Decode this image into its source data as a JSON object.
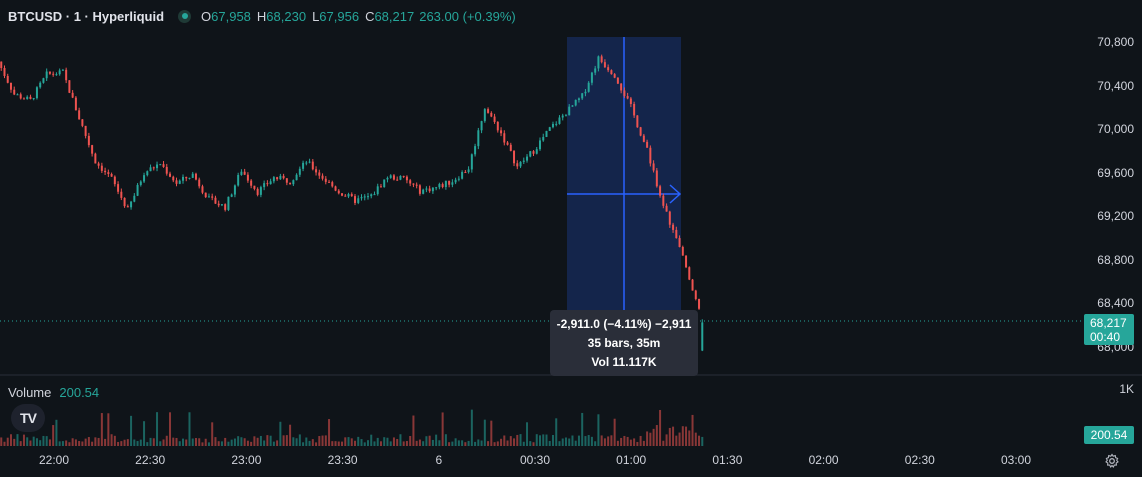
{
  "legend": {
    "symbol": "BTCUSD · 1 · Hyperliquid",
    "open_label": "O",
    "open": "67,958",
    "high_label": "H",
    "high": "68,230",
    "low_label": "L",
    "low": "67,956",
    "close_label": "C",
    "close": "68,217",
    "change": "263.00 (+0.39%)"
  },
  "volume_legend": {
    "label": "Volume",
    "value": "200.54"
  },
  "logo_text": "TV",
  "price_axis": {
    "ticks": [
      "70,800",
      "70,400",
      "70,000",
      "69,600",
      "69,200",
      "68,800",
      "68,400",
      "68,000"
    ]
  },
  "volume_axis": {
    "max_label": "1K"
  },
  "time_axis": {
    "ticks": [
      "22:00",
      "22:30",
      "23:00",
      "23:30",
      "6",
      "00:30",
      "01:00",
      "01:30",
      "02:00",
      "02:30",
      "03:00"
    ]
  },
  "current_price": {
    "price": "68,217",
    "countdown": "00:40"
  },
  "current_volume": "200.54",
  "measure_tooltip": {
    "line1": "-2,911.0 (−4.11%) −2,911",
    "line2": "35 bars, 35m",
    "line3": "Vol 11.117K"
  },
  "colors": {
    "up": "#26a69a",
    "down": "#ef5350",
    "measure_fill": "#2962ff",
    "background": "#0f1419"
  },
  "icons": {
    "settings": "gear-icon",
    "logo": "tradingview-logo-icon"
  },
  "chart_data": {
    "type": "candlestick",
    "symbol": "BTCUSD",
    "interval_minutes": 1,
    "x_range": [
      "21:41",
      "03:15"
    ],
    "ylim": [
      67880,
      70880
    ],
    "candles_approx_close_path": [
      {
        "t": "21:41",
        "price": 70620
      },
      {
        "t": "21:46",
        "price": 70320
      },
      {
        "t": "21:51",
        "price": 70260
      },
      {
        "t": "21:56",
        "price": 70500
      },
      {
        "t": "22:01",
        "price": 70520
      },
      {
        "t": "22:06",
        "price": 70100
      },
      {
        "t": "22:11",
        "price": 69700
      },
      {
        "t": "22:16",
        "price": 69540
      },
      {
        "t": "22:21",
        "price": 69250
      },
      {
        "t": "22:26",
        "price": 69600
      },
      {
        "t": "22:31",
        "price": 69680
      },
      {
        "t": "22:36",
        "price": 69500
      },
      {
        "t": "22:41",
        "price": 69580
      },
      {
        "t": "22:46",
        "price": 69350
      },
      {
        "t": "22:51",
        "price": 69280
      },
      {
        "t": "22:56",
        "price": 69620
      },
      {
        "t": "23:01",
        "price": 69420
      },
      {
        "t": "23:06",
        "price": 69550
      },
      {
        "t": "23:11",
        "price": 69520
      },
      {
        "t": "23:16",
        "price": 69700
      },
      {
        "t": "23:21",
        "price": 69550
      },
      {
        "t": "23:26",
        "price": 69420
      },
      {
        "t": "23:31",
        "price": 69340
      },
      {
        "t": "23:36",
        "price": 69380
      },
      {
        "t": "23:41",
        "price": 69560
      },
      {
        "t": "23:46",
        "price": 69540
      },
      {
        "t": "23:51",
        "price": 69430
      },
      {
        "t": "23:56",
        "price": 69460
      },
      {
        "t": "00:01",
        "price": 69520
      },
      {
        "t": "00:06",
        "price": 69640
      },
      {
        "t": "00:11",
        "price": 70200
      },
      {
        "t": "00:16",
        "price": 69960
      },
      {
        "t": "00:21",
        "price": 69650
      },
      {
        "t": "00:26",
        "price": 69800
      },
      {
        "t": "00:31",
        "price": 70000
      },
      {
        "t": "00:36",
        "price": 70150
      },
      {
        "t": "00:41",
        "price": 70300
      },
      {
        "t": "00:46",
        "price": 70650
      },
      {
        "t": "00:51",
        "price": 70500
      },
      {
        "t": "00:56",
        "price": 70200
      },
      {
        "t": "01:01",
        "price": 69800
      },
      {
        "t": "01:06",
        "price": 69300
      },
      {
        "t": "01:11",
        "price": 68900
      },
      {
        "t": "01:16",
        "price": 68450
      },
      {
        "t": "01:18",
        "price": 68217
      }
    ],
    "last": {
      "open": 67958,
      "high": 68230,
      "low": 67956,
      "close": 68217
    },
    "volume_ylim": [
      0,
      1000
    ],
    "measure": {
      "from": "00:43",
      "to": "01:18",
      "change": "-2,911.0",
      "percent": "−4.11%",
      "bars": 35,
      "minutes": 35,
      "volume": "11.117K"
    }
  }
}
